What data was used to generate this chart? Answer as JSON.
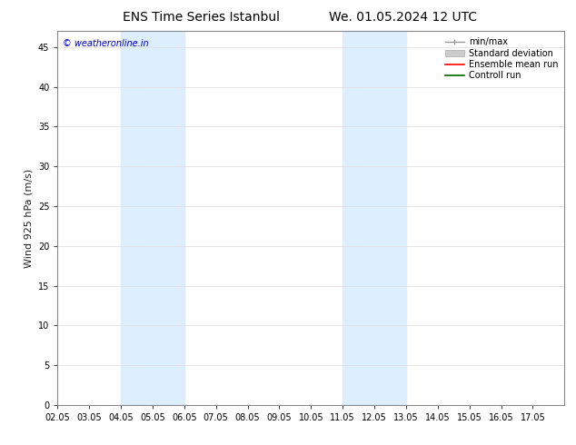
{
  "title_left": "ENS Time Series Istanbul",
  "title_right": "We. 01.05.2024 12 UTC",
  "ylabel": "Wind 925 hPa (m/s)",
  "watermark": "© weatheronline.in",
  "watermark_color": "#0000cc",
  "xlim_start": 0,
  "xlim_end": 16,
  "ylim_min": 0,
  "ylim_max": 47,
  "yticks": [
    0,
    5,
    10,
    15,
    20,
    25,
    30,
    35,
    40,
    45
  ],
  "xtick_labels": [
    "02.05",
    "03.05",
    "04.05",
    "05.05",
    "06.05",
    "07.05",
    "08.05",
    "09.05",
    "10.05",
    "11.05",
    "12.05",
    "13.05",
    "14.05",
    "15.05",
    "16.05",
    "17.05"
  ],
  "shaded_bands": [
    {
      "xmin": 2.0,
      "xmax": 4.0
    },
    {
      "xmin": 9.0,
      "xmax": 11.0
    }
  ],
  "shaded_color": "#ddeeff",
  "background_color": "#ffffff",
  "plot_bg_color": "#ffffff",
  "spine_color": "#888888",
  "tick_color": "#444444",
  "tick_fontsize": 7,
  "label_fontsize": 8,
  "title_fontsize": 10,
  "watermark_fontsize": 7,
  "legend_fontsize": 7
}
